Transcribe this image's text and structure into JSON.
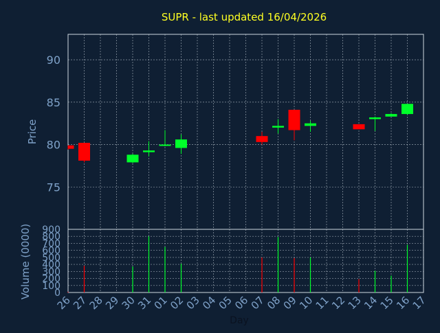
{
  "chart_data": [
    {
      "type": "candlestick",
      "title": "SUPR - last updated 16/04/2026",
      "ylabel": "Price",
      "ylim": [
        70,
        93
      ],
      "yticks": [
        75,
        80,
        85,
        90
      ],
      "grid": true,
      "categories": [
        "26",
        "27",
        "28",
        "29",
        "30",
        "31",
        "01",
        "02",
        "03",
        "04",
        "05",
        "06",
        "07",
        "08",
        "09",
        "10",
        "11",
        "12",
        "13",
        "14",
        "15",
        "16",
        "17"
      ],
      "candles": [
        {
          "x": "26",
          "open": 79.9,
          "close": 79.5,
          "high": 79.9,
          "low": 79.4
        },
        {
          "x": "27",
          "open": 80.2,
          "close": 78.1,
          "high": 80.2,
          "low": 77.9
        },
        {
          "x": "30",
          "open": 77.9,
          "close": 78.8,
          "high": 78.9,
          "low": 77.8
        },
        {
          "x": "31",
          "open": 79.1,
          "close": 79.3,
          "high": 80.4,
          "low": 78.6
        },
        {
          "x": "01",
          "open": 79.9,
          "close": 80.0,
          "high": 81.7,
          "low": 79.8
        },
        {
          "x": "02",
          "open": 79.6,
          "close": 80.6,
          "high": 81.2,
          "low": 78.9
        },
        {
          "x": "07",
          "open": 81.0,
          "close": 80.3,
          "high": 81.5,
          "low": 80.0
        },
        {
          "x": "08",
          "open": 82.0,
          "close": 82.2,
          "high": 83.0,
          "low": 81.3
        },
        {
          "x": "09",
          "open": 84.1,
          "close": 81.7,
          "high": 84.1,
          "low": 80.5
        },
        {
          "x": "10",
          "open": 82.2,
          "close": 82.5,
          "high": 82.8,
          "low": 81.5
        },
        {
          "x": "13",
          "open": 82.4,
          "close": 81.8,
          "high": 82.4,
          "low": 81.8
        },
        {
          "x": "14",
          "open": 83.0,
          "close": 83.2,
          "high": 83.3,
          "low": 81.6
        },
        {
          "x": "15",
          "open": 83.3,
          "close": 83.6,
          "high": 83.7,
          "low": 83.3
        },
        {
          "x": "16",
          "open": 83.6,
          "close": 84.8,
          "high": 84.8,
          "low": 83.5
        }
      ],
      "up_color": "#00ff2a",
      "down_color": "#ff0000"
    },
    {
      "type": "bar",
      "ylabel": "Volume (0000)",
      "xlabel": "Day",
      "ylim": [
        0,
        900
      ],
      "yticks": [
        0,
        100,
        200,
        300,
        400,
        500,
        600,
        700,
        800,
        900
      ],
      "grid": true,
      "categories": [
        "26",
        "27",
        "28",
        "29",
        "30",
        "31",
        "01",
        "02",
        "03",
        "04",
        "05",
        "06",
        "07",
        "08",
        "09",
        "10",
        "11",
        "12",
        "13",
        "14",
        "15",
        "16",
        "17"
      ],
      "bars": [
        {
          "x": "26",
          "value": 10,
          "direction": "down"
        },
        {
          "x": "27",
          "value": 380,
          "direction": "down"
        },
        {
          "x": "30",
          "value": 370,
          "direction": "up"
        },
        {
          "x": "31",
          "value": 800,
          "direction": "up"
        },
        {
          "x": "01",
          "value": 650,
          "direction": "up"
        },
        {
          "x": "02",
          "value": 410,
          "direction": "up"
        },
        {
          "x": "07",
          "value": 500,
          "direction": "down"
        },
        {
          "x": "08",
          "value": 790,
          "direction": "up"
        },
        {
          "x": "09",
          "value": 490,
          "direction": "down"
        },
        {
          "x": "10",
          "value": 500,
          "direction": "up"
        },
        {
          "x": "13",
          "value": 190,
          "direction": "down"
        },
        {
          "x": "14",
          "value": 310,
          "direction": "up"
        },
        {
          "x": "15",
          "value": 240,
          "direction": "up"
        },
        {
          "x": "16",
          "value": 680,
          "direction": "up"
        }
      ]
    }
  ],
  "colors": {
    "background": "#0f1f33",
    "title": "#ffff22",
    "axis_text": "#7fa2c9",
    "frame": "#cfd8e2",
    "grid": "#cfd8e2"
  }
}
